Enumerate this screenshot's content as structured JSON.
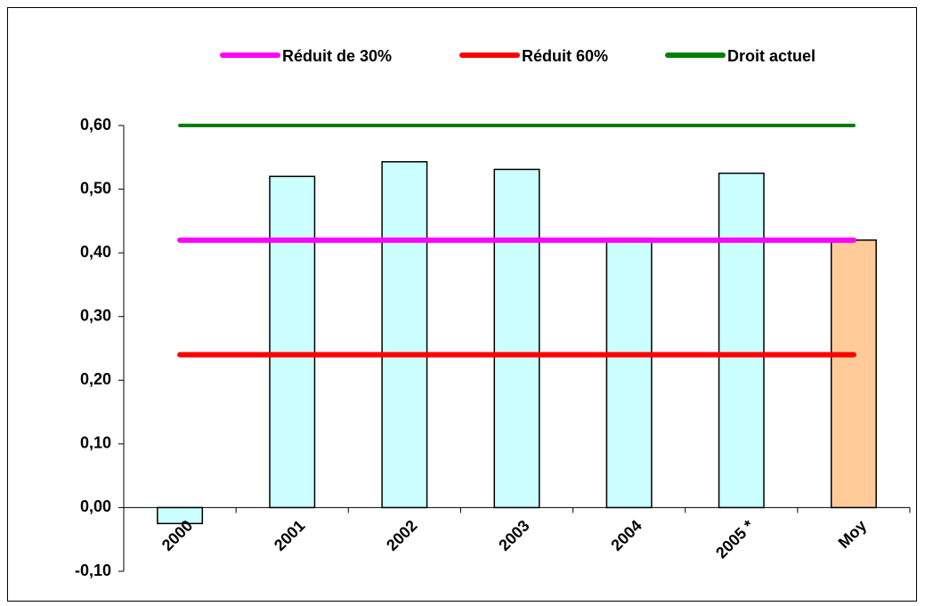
{
  "chart_data": {
    "type": "bar",
    "categories": [
      "2000",
      "2001",
      "2002",
      "2003",
      "2004",
      "2005 *",
      "Moy"
    ],
    "values": [
      -0.025,
      0.52,
      0.543,
      0.531,
      0.423,
      0.525,
      0.42
    ],
    "colors": [
      "#ccffff",
      "#ccffff",
      "#ccffff",
      "#ccffff",
      "#ccffff",
      "#ccffff",
      "#ffcc99"
    ],
    "series": [
      {
        "name": "Réduit de 30%",
        "color": "#ff00ff",
        "values": [
          0.42,
          0.42,
          0.42,
          0.42,
          0.42,
          0.42,
          0.42
        ]
      },
      {
        "name": "Réduit 60%",
        "color": "#ff0000",
        "values": [
          0.24,
          0.24,
          0.24,
          0.24,
          0.24,
          0.24,
          0.24
        ]
      },
      {
        "name": "Droit actuel",
        "color": "#008000",
        "values": [
          0.6,
          0.6,
          0.6,
          0.6,
          0.6,
          0.6,
          0.6
        ]
      }
    ],
    "ylim": [
      -0.1,
      0.6
    ],
    "yticks": [
      {
        "value": -0.1,
        "label": "-0,10"
      },
      {
        "value": 0,
        "label": "0,00"
      },
      {
        "value": 0.1,
        "label": "0,10"
      },
      {
        "value": 0.2,
        "label": "0,20"
      },
      {
        "value": 0.3,
        "label": "0,30"
      },
      {
        "value": 0.4,
        "label": "0,40"
      },
      {
        "value": 0.5,
        "label": "0,50"
      },
      {
        "value": 0.6,
        "label": "0,60"
      }
    ],
    "legend": "top"
  }
}
